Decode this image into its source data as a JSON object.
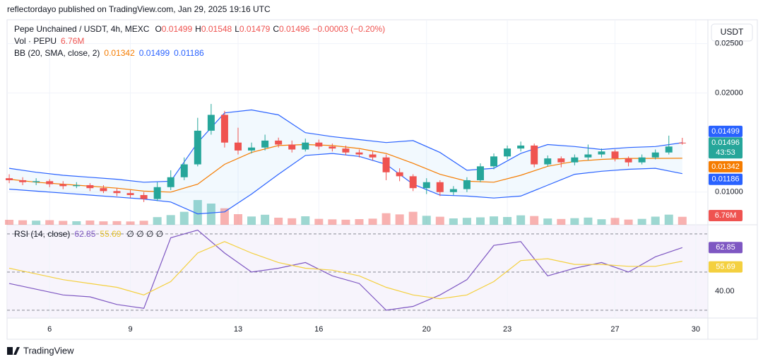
{
  "header": {
    "text": "reflectordayo published on TradingView.com, Jan 29, 2025 19:16 UTC",
    "currency": "USDT"
  },
  "footer": {
    "brand": "TradingView"
  },
  "chart_data": [
    {
      "type": "candlestick",
      "title": "Pepe Unchained / USDT, 4h, MEXC",
      "ohlc_labels": [
        "O",
        "H",
        "L",
        "C"
      ],
      "change_label": "−0.00003 (−0.20%)",
      "countdown": "43:53",
      "up_color": "#26a69a",
      "down_color": "#ef5350",
      "xlim": [
        4.42,
        30.45
      ],
      "xticks": [
        6,
        9,
        13,
        16,
        20,
        23,
        27,
        30
      ],
      "ylim": [
        0.0067,
        0.0274
      ],
      "yticks": [
        {
          "value": 0.025,
          "label": "0.02500"
        },
        {
          "value": 0.02,
          "label": "0.02000"
        },
        {
          "value": 0.01,
          "label": "0.01000"
        }
      ],
      "grid": true,
      "x": [
        4.5,
        5,
        5.5,
        6,
        6.5,
        7,
        7.5,
        8,
        8.5,
        9,
        9.5,
        10,
        10.5,
        11,
        11.5,
        12,
        12.5,
        13,
        13.5,
        14,
        14.5,
        15,
        15.5,
        16,
        16.5,
        17,
        17.5,
        18,
        18.5,
        19,
        19.5,
        20,
        20.5,
        21,
        21.5,
        22,
        22.5,
        23,
        23.5,
        24,
        24.5,
        25,
        25.5,
        26,
        26.5,
        27,
        27.5,
        28,
        28.5,
        29,
        29.5
      ],
      "open": [
        0.0114,
        0.0112,
        0.011,
        0.0111,
        0.0108,
        0.0106,
        0.0107,
        0.0104,
        0.0101,
        0.0099,
        0.0097,
        0.0093,
        0.0105,
        0.0115,
        0.0128,
        0.0162,
        0.0178,
        0.015,
        0.0142,
        0.0145,
        0.0152,
        0.0148,
        0.0143,
        0.015,
        0.0146,
        0.0144,
        0.014,
        0.0138,
        0.0135,
        0.012,
        0.0116,
        0.0104,
        0.011,
        0.01,
        0.0103,
        0.0112,
        0.0126,
        0.0136,
        0.0144,
        0.0147,
        0.0128,
        0.0134,
        0.013,
        0.0135,
        0.0138,
        0.0141,
        0.0134,
        0.013,
        0.0135,
        0.014,
        0.01499
      ],
      "high": [
        0.0118,
        0.0115,
        0.0114,
        0.0113,
        0.0111,
        0.011,
        0.0109,
        0.0107,
        0.0104,
        0.0102,
        0.01,
        0.011,
        0.0122,
        0.0135,
        0.0175,
        0.0189,
        0.0182,
        0.0165,
        0.015,
        0.0158,
        0.0155,
        0.0152,
        0.0154,
        0.0153,
        0.0149,
        0.0147,
        0.0143,
        0.0141,
        0.0138,
        0.0124,
        0.0118,
        0.0114,
        0.0112,
        0.0106,
        0.0115,
        0.0129,
        0.0139,
        0.0147,
        0.0151,
        0.0149,
        0.0137,
        0.0136,
        0.0138,
        0.0148,
        0.0144,
        0.0143,
        0.0136,
        0.0138,
        0.0143,
        0.0157,
        0.01548
      ],
      "low": [
        0.0109,
        0.0107,
        0.0107,
        0.0105,
        0.0103,
        0.0104,
        0.0101,
        0.0099,
        0.0096,
        0.0094,
        0.009,
        0.0091,
        0.0102,
        0.0112,
        0.0126,
        0.0158,
        0.0145,
        0.0138,
        0.0139,
        0.0142,
        0.0145,
        0.014,
        0.0141,
        0.0143,
        0.0141,
        0.0137,
        0.0135,
        0.0132,
        0.0112,
        0.0111,
        0.0101,
        0.0098,
        0.0096,
        0.0097,
        0.01,
        0.011,
        0.0123,
        0.0133,
        0.0141,
        0.0125,
        0.0126,
        0.0125,
        0.0127,
        0.0132,
        0.0135,
        0.0131,
        0.0126,
        0.0128,
        0.0133,
        0.0138,
        0.01479
      ],
      "close": [
        0.0112,
        0.011,
        0.0111,
        0.0108,
        0.0106,
        0.0107,
        0.0104,
        0.0101,
        0.0099,
        0.0097,
        0.0093,
        0.0105,
        0.0115,
        0.0128,
        0.0162,
        0.0178,
        0.015,
        0.0142,
        0.0145,
        0.0152,
        0.0148,
        0.0143,
        0.015,
        0.0146,
        0.0144,
        0.014,
        0.0138,
        0.0135,
        0.012,
        0.0116,
        0.0104,
        0.011,
        0.01,
        0.0103,
        0.0112,
        0.0126,
        0.0136,
        0.0144,
        0.0147,
        0.0128,
        0.0134,
        0.013,
        0.0135,
        0.0138,
        0.0141,
        0.0134,
        0.013,
        0.0135,
        0.014,
        0.0146,
        0.01496
      ],
      "volume": {
        "name": "Vol · PEPU",
        "values": [
          4200000,
          3800000,
          3500000,
          3900000,
          3300000,
          3000000,
          3600000,
          2900000,
          3100000,
          2800000,
          3400000,
          6500000,
          8200000,
          11000000,
          21000000,
          18000000,
          14000000,
          9000000,
          7000000,
          8500000,
          6000000,
          5500000,
          7200000,
          5000000,
          4600000,
          4300000,
          4800000,
          5200000,
          9800000,
          8800000,
          11000000,
          7600000,
          6800000,
          5400000,
          5900000,
          6300000,
          7100000,
          6600000,
          8000000,
          7400000,
          5300000,
          4900000,
          5600000,
          6100000,
          4700000,
          5800000,
          4400000,
          5000000,
          6900000,
          8600000,
          6760000
        ],
        "value_labels": [
          null,
          null,
          null,
          null,
          null,
          null,
          null,
          null,
          null,
          null,
          null,
          null,
          null,
          null,
          null,
          null,
          null,
          null,
          null,
          null,
          null,
          null,
          null,
          null,
          null,
          null,
          null,
          null,
          null,
          null,
          null,
          null,
          null,
          null,
          null,
          null,
          null,
          null,
          null,
          null,
          null,
          null,
          null,
          null,
          null,
          null,
          null,
          null,
          null,
          null,
          "6.76M"
        ]
      },
      "bb": {
        "title": "BB (20, SMA, close, 2)",
        "x": [
          4.5,
          5.5,
          6.5,
          7.5,
          8.5,
          9.5,
          10.5,
          11.5,
          12.5,
          13.5,
          14.5,
          15.5,
          16.5,
          17.5,
          18.5,
          19.5,
          20.5,
          21.5,
          22.5,
          23.5,
          24.5,
          25.5,
          26.5,
          27.5,
          28.5,
          29.5
        ],
        "basis": {
          "color": "#f57c00",
          "values": [
            0.0113,
            0.011,
            0.0108,
            0.0106,
            0.0104,
            0.0101,
            0.01,
            0.0108,
            0.0128,
            0.014,
            0.0147,
            0.0148,
            0.0147,
            0.0144,
            0.0139,
            0.0129,
            0.0118,
            0.0111,
            0.011,
            0.0117,
            0.0126,
            0.0131,
            0.0133,
            0.0134,
            0.0134,
            0.01342
          ]
        },
        "upper": {
          "color": "#2962ff",
          "values": [
            0.0124,
            0.012,
            0.0117,
            0.0115,
            0.0113,
            0.011,
            0.0111,
            0.015,
            0.018,
            0.0183,
            0.0178,
            0.016,
            0.0156,
            0.0153,
            0.015,
            0.0152,
            0.014,
            0.0122,
            0.0124,
            0.0139,
            0.0148,
            0.0146,
            0.0143,
            0.0145,
            0.0146,
            0.01499
          ]
        },
        "lower": {
          "color": "#2962ff",
          "values": [
            0.0103,
            0.0101,
            0.0099,
            0.0097,
            0.0095,
            0.0093,
            0.009,
            0.0078,
            0.008,
            0.0098,
            0.0118,
            0.0137,
            0.0139,
            0.0136,
            0.0128,
            0.0108,
            0.0097,
            0.0096,
            0.0094,
            0.0096,
            0.0107,
            0.0118,
            0.0121,
            0.0123,
            0.0124,
            0.01186
          ]
        }
      }
    },
    {
      "type": "line",
      "title": "RSI (14, close)",
      "extra_label": "∅ ∅ ∅ ∅",
      "xlim": [
        4.42,
        30.45
      ],
      "ylim": [
        25.9,
        74.8
      ],
      "yticks": [
        {
          "value": 40,
          "label": "40.00"
        }
      ],
      "bands": [
        70,
        50,
        30
      ],
      "x": [
        4.5,
        5.5,
        6.5,
        7.5,
        8.5,
        9.5,
        10.5,
        11.5,
        12.5,
        13.5,
        14.5,
        15.5,
        16.5,
        17.5,
        18.5,
        19.5,
        20.5,
        21.5,
        22.5,
        23.5,
        24.5,
        25.5,
        26.5,
        27.5,
        28.5,
        29.5
      ],
      "series": [
        {
          "color": "#7e57c2",
          "values": [
            44,
            41,
            38,
            37,
            33,
            31,
            68,
            72,
            60,
            50,
            52,
            55,
            48,
            44,
            30,
            32,
            38,
            46,
            64,
            66,
            48,
            52,
            55,
            50,
            58,
            62.85
          ]
        },
        {
          "color": "#f4d03f",
          "values": [
            52,
            49,
            46,
            44,
            42,
            38,
            45,
            60,
            66,
            60,
            55,
            52,
            51,
            48,
            42,
            38,
            36,
            38,
            45,
            56,
            57,
            54,
            54,
            53,
            53,
            55.69
          ]
        }
      ]
    }
  ]
}
